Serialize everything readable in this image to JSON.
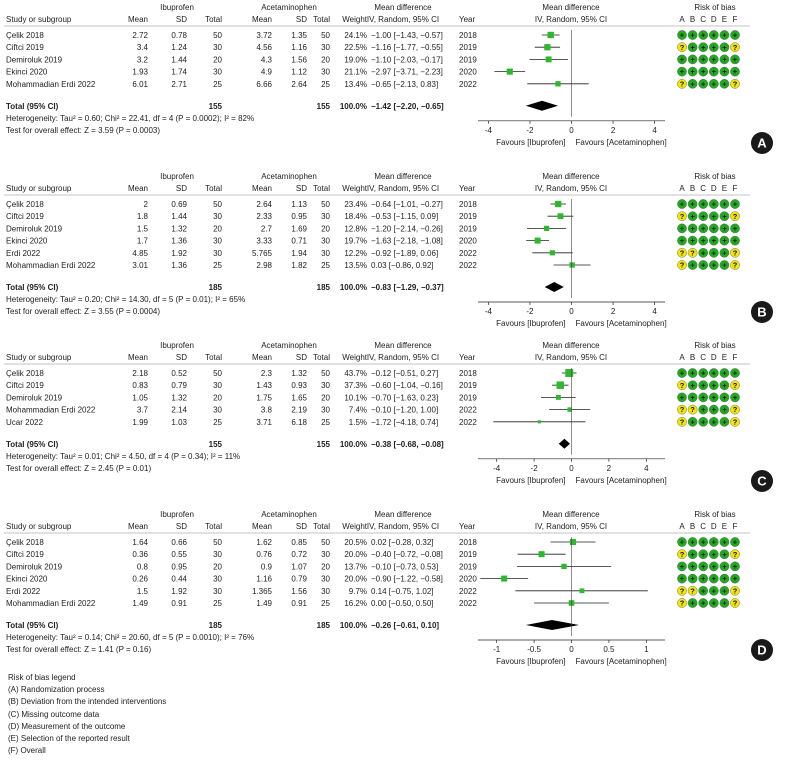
{
  "headers": {
    "study": "Study or subgroup",
    "group1": "Ibuprofen",
    "group2": "Acetaminophen",
    "mean": "Mean",
    "sd": "SD",
    "total": "Total",
    "weight": "Weight",
    "md_title": "Mean difference",
    "md_sub": "IV, Random, 95% CI",
    "year": "Year",
    "rob_title": "Risk of bias",
    "rob_letters": [
      "A",
      "B",
      "C",
      "D",
      "E",
      "F"
    ],
    "favours_left": "Favours [Ibuprofen]",
    "favours_right": "Favours [Acetaminophen]"
  },
  "colors": {
    "low": "#1faa1f",
    "unclear": "#f2e600",
    "point": "#2db82d",
    "diamond": "#000000"
  },
  "chart_data": [
    {
      "type": "forest",
      "label": "A",
      "axis": {
        "min": -4.5,
        "max": 4.5,
        "ticks": [
          "-4",
          "-2",
          "0",
          "2",
          "4"
        ]
      },
      "studies": [
        {
          "name": "Çelik 2018",
          "m1": "2.72",
          "sd1": "0.78",
          "n1": "50",
          "m2": "3.72",
          "sd2": "1.35",
          "n2": "50",
          "weight": "24.1%",
          "ci_text": "−1.00 [−1.43, −0.57]",
          "year": "2018",
          "md": -1.0,
          "lo": -1.43,
          "hi": -0.57,
          "w": 24.1,
          "rob": [
            "+",
            "+",
            "+",
            "+",
            "+",
            "+"
          ]
        },
        {
          "name": "Ciftci 2019",
          "m1": "3.4",
          "sd1": "1.24",
          "n1": "30",
          "m2": "4.56",
          "sd2": "1.16",
          "n2": "30",
          "weight": "22.5%",
          "ci_text": "−1.16 [−1.77, −0.55]",
          "year": "2019",
          "md": -1.16,
          "lo": -1.77,
          "hi": -0.55,
          "w": 22.5,
          "rob": [
            "?",
            "+",
            "+",
            "+",
            "+",
            "?"
          ]
        },
        {
          "name": "Demiroluk 2019",
          "m1": "3.2",
          "sd1": "1.44",
          "n1": "20",
          "m2": "4.3",
          "sd2": "1.56",
          "n2": "20",
          "weight": "19.0%",
          "ci_text": "−1.10 [−2.03, −0.17]",
          "year": "2019",
          "md": -1.1,
          "lo": -2.03,
          "hi": -0.17,
          "w": 19.0,
          "rob": [
            "+",
            "+",
            "+",
            "+",
            "+",
            "+"
          ]
        },
        {
          "name": "Ekinci 2020",
          "m1": "1.93",
          "sd1": "1.74",
          "n1": "30",
          "m2": "4.9",
          "sd2": "1.12",
          "n2": "30",
          "weight": "21.1%",
          "ci_text": "−2.97 [−3.71, −2.23]",
          "year": "2020",
          "md": -2.97,
          "lo": -3.71,
          "hi": -2.23,
          "w": 21.1,
          "rob": [
            "+",
            "+",
            "+",
            "+",
            "+",
            "+"
          ]
        },
        {
          "name": "Mohammadian Erdi 2022",
          "m1": "6.01",
          "sd1": "2.71",
          "n1": "25",
          "m2": "6.66",
          "sd2": "2.64",
          "n2": "25",
          "weight": "13.4%",
          "ci_text": "−0.65 [−2.13, 0.83]",
          "year": "2022",
          "md": -0.65,
          "lo": -2.13,
          "hi": 0.83,
          "w": 13.4,
          "rob": [
            "?",
            "+",
            "+",
            "+",
            "+",
            "?"
          ]
        }
      ],
      "total": {
        "label": "Total (95% CI)",
        "n1": "155",
        "n2": "155",
        "weight": "100.0%",
        "ci_text": "−1.42 [−2.20, −0.65]",
        "md": -1.42,
        "lo": -2.2,
        "hi": -0.65
      },
      "heterogeneity": "Heterogeneity: Tau² = 0.60; Chi² = 22.41, df = 4 (P = 0.0002); I² = 82%",
      "overall": "Test for overall effect: Z = 3.59 (P = 0.0003)"
    },
    {
      "type": "forest",
      "label": "B",
      "axis": {
        "min": -4.5,
        "max": 4.5,
        "ticks": [
          "-4",
          "-2",
          "0",
          "2",
          "4"
        ]
      },
      "studies": [
        {
          "name": "Çelik 2018",
          "m1": "2",
          "sd1": "0.69",
          "n1": "50",
          "m2": "2.64",
          "sd2": "1.13",
          "n2": "50",
          "weight": "23.4%",
          "ci_text": "−0.64 [−1.01, −0.27]",
          "year": "2018",
          "md": -0.64,
          "lo": -1.01,
          "hi": -0.27,
          "w": 23.4,
          "rob": [
            "+",
            "+",
            "+",
            "+",
            "+",
            "+"
          ]
        },
        {
          "name": "Ciftci 2019",
          "m1": "1.8",
          "sd1": "1.44",
          "n1": "30",
          "m2": "2.33",
          "sd2": "0.95",
          "n2": "30",
          "weight": "18.4%",
          "ci_text": "−0.53 [−1.15, 0.09]",
          "year": "2019",
          "md": -0.53,
          "lo": -1.15,
          "hi": 0.09,
          "w": 18.4,
          "rob": [
            "?",
            "+",
            "+",
            "+",
            "+",
            "?"
          ]
        },
        {
          "name": "Demiroluk 2019",
          "m1": "1.5",
          "sd1": "1.32",
          "n1": "20",
          "m2": "2.7",
          "sd2": "1.69",
          "n2": "20",
          "weight": "12.8%",
          "ci_text": "−1.20 [−2.14, −0.26]",
          "year": "2019",
          "md": -1.2,
          "lo": -2.14,
          "hi": -0.26,
          "w": 12.8,
          "rob": [
            "+",
            "+",
            "+",
            "+",
            "+",
            "+"
          ]
        },
        {
          "name": "Ekinci 2020",
          "m1": "1.7",
          "sd1": "1.36",
          "n1": "30",
          "m2": "3.33",
          "sd2": "0.71",
          "n2": "30",
          "weight": "19.7%",
          "ci_text": "−1.63 [−2.18, −1.08]",
          "year": "2020",
          "md": -1.63,
          "lo": -2.18,
          "hi": -1.08,
          "w": 19.7,
          "rob": [
            "+",
            "+",
            "+",
            "+",
            "+",
            "+"
          ]
        },
        {
          "name": "Erdi 2022",
          "m1": "4.85",
          "sd1": "1.92",
          "n1": "30",
          "m2": "5.765",
          "sd2": "1.94",
          "n2": "30",
          "weight": "12.2%",
          "ci_text": "−0.92 [−1.89, 0.06]",
          "year": "2022",
          "md": -0.92,
          "lo": -1.89,
          "hi": 0.06,
          "w": 12.2,
          "rob": [
            "?",
            "?",
            "+",
            "+",
            "+",
            "?"
          ]
        },
        {
          "name": "Mohammadian Erdi 2022",
          "m1": "3.01",
          "sd1": "1.36",
          "n1": "25",
          "m2": "2.98",
          "sd2": "1.82",
          "n2": "25",
          "weight": "13.5%",
          "ci_text": "0.03 [−0.86, 0.92]",
          "year": "2022",
          "md": 0.03,
          "lo": -0.86,
          "hi": 0.92,
          "w": 13.5,
          "rob": [
            "?",
            "+",
            "+",
            "+",
            "+",
            "?"
          ]
        }
      ],
      "total": {
        "label": "Total (95% CI)",
        "n1": "185",
        "n2": "185",
        "weight": "100.0%",
        "ci_text": "−0.83 [−1.29, −0.37]",
        "md": -0.83,
        "lo": -1.29,
        "hi": -0.37
      },
      "heterogeneity": "Heterogeneity: Tau² = 0.20; Chi² = 14.30, df = 5 (P = 0.01); I² = 65%",
      "overall": "Test for overall effect: Z = 3.55 (P = 0.0004)"
    },
    {
      "type": "forest",
      "label": "C",
      "axis": {
        "min": -5,
        "max": 5,
        "ticks": [
          "-4",
          "-2",
          "0",
          "2",
          "4"
        ]
      },
      "studies": [
        {
          "name": "Çelik 2018",
          "m1": "2.18",
          "sd1": "0.52",
          "n1": "50",
          "m2": "2.3",
          "sd2": "1.32",
          "n2": "50",
          "weight": "43.7%",
          "ci_text": "−0.12 [−0.51, 0.27]",
          "year": "2018",
          "md": -0.12,
          "lo": -0.51,
          "hi": 0.27,
          "w": 43.7,
          "rob": [
            "+",
            "+",
            "+",
            "+",
            "+",
            "+"
          ]
        },
        {
          "name": "Ciftci 2019",
          "m1": "0.83",
          "sd1": "0.79",
          "n1": "30",
          "m2": "1.43",
          "sd2": "0.93",
          "n2": "30",
          "weight": "37.3%",
          "ci_text": "−0.60 [−1.04, −0.16]",
          "year": "2019",
          "md": -0.6,
          "lo": -1.04,
          "hi": -0.16,
          "w": 37.3,
          "rob": [
            "?",
            "+",
            "+",
            "+",
            "+",
            "?"
          ]
        },
        {
          "name": "Demiroluk 2019",
          "m1": "1.05",
          "sd1": "1.32",
          "n1": "20",
          "m2": "1.75",
          "sd2": "1.65",
          "n2": "20",
          "weight": "10.1%",
          "ci_text": "−0.70 [−1.63, 0.23]",
          "year": "2019",
          "md": -0.7,
          "lo": -1.63,
          "hi": 0.23,
          "w": 10.1,
          "rob": [
            "+",
            "+",
            "+",
            "+",
            "+",
            "+"
          ]
        },
        {
          "name": "Mohammadian Erdi 2022",
          "m1": "3.7",
          "sd1": "2.14",
          "n1": "30",
          "m2": "3.8",
          "sd2": "2.19",
          "n2": "30",
          "weight": "7.4%",
          "ci_text": "−0.10 [−1.20, 1.00]",
          "year": "2022",
          "md": -0.1,
          "lo": -1.2,
          "hi": 1.0,
          "w": 7.4,
          "rob": [
            "?",
            "?",
            "+",
            "+",
            "+",
            "?"
          ]
        },
        {
          "name": "Ucar 2022",
          "m1": "1.99",
          "sd1": "1.03",
          "n1": "25",
          "m2": "3.71",
          "sd2": "6.18",
          "n2": "25",
          "weight": "1.5%",
          "ci_text": "−1.72 [−4.18, 0.74]",
          "year": "2022",
          "md": -1.72,
          "lo": -4.18,
          "hi": 0.74,
          "w": 1.5,
          "rob": [
            "?",
            "+",
            "+",
            "+",
            "+",
            "?"
          ]
        }
      ],
      "total": {
        "label": "Total (95% CI)",
        "n1": "155",
        "n2": "155",
        "weight": "100.0%",
        "ci_text": "−0.38 [−0.68, −0.08]",
        "md": -0.38,
        "lo": -0.68,
        "hi": -0.08
      },
      "heterogeneity": "Heterogeneity: Tau² = 0.01; Chi² = 4.50, df = 4 (P = 0.34); I² = 11%",
      "overall": "Test for overall effect: Z = 2.45 (P = 0.01)"
    },
    {
      "type": "forest",
      "label": "D",
      "axis": {
        "min": -1.25,
        "max": 1.25,
        "ticks": [
          "-1",
          "-0.5",
          "0",
          "0.5",
          "1"
        ]
      },
      "studies": [
        {
          "name": "Çelik 2018",
          "m1": "1.64",
          "sd1": "0.66",
          "n1": "50",
          "m2": "1.62",
          "sd2": "0.85",
          "n2": "50",
          "weight": "20.5%",
          "ci_text": "0.02 [−0.28, 0.32]",
          "year": "2018",
          "md": 0.02,
          "lo": -0.28,
          "hi": 0.32,
          "w": 20.5,
          "rob": [
            "+",
            "+",
            "+",
            "+",
            "+",
            "+"
          ]
        },
        {
          "name": "Ciftci 2019",
          "m1": "0.36",
          "sd1": "0.55",
          "n1": "30",
          "m2": "0.76",
          "sd2": "0.72",
          "n2": "30",
          "weight": "20.0%",
          "ci_text": "−0.40 [−0.72, −0.08]",
          "year": "2019",
          "md": -0.4,
          "lo": -0.72,
          "hi": -0.08,
          "w": 20.0,
          "rob": [
            "?",
            "+",
            "+",
            "+",
            "+",
            "?"
          ]
        },
        {
          "name": "Demiroluk 2019",
          "m1": "0.8",
          "sd1": "0.95",
          "n1": "20",
          "m2": "0.9",
          "sd2": "1.07",
          "n2": "20",
          "weight": "13.7%",
          "ci_text": "−0.10 [−0.73, 0.53]",
          "year": "2019",
          "md": -0.1,
          "lo": -0.73,
          "hi": 0.53,
          "w": 13.7,
          "rob": [
            "+",
            "+",
            "+",
            "+",
            "+",
            "+"
          ]
        },
        {
          "name": "Ekinci 2020",
          "m1": "0.26",
          "sd1": "0.44",
          "n1": "30",
          "m2": "1.16",
          "sd2": "0.79",
          "n2": "30",
          "weight": "20.0%",
          "ci_text": "−0.90 [−1.22, −0.58]",
          "year": "2020",
          "md": -0.9,
          "lo": -1.22,
          "hi": -0.58,
          "w": 20.0,
          "rob": [
            "+",
            "+",
            "+",
            "+",
            "+",
            "+"
          ]
        },
        {
          "name": "Erdi 2022",
          "m1": "1.5",
          "sd1": "1.92",
          "n1": "30",
          "m2": "1.365",
          "sd2": "1.56",
          "n2": "30",
          "weight": "9.7%",
          "ci_text": "0.14 [−0.75, 1.02]",
          "year": "2022",
          "md": 0.14,
          "lo": -0.75,
          "hi": 1.02,
          "w": 9.7,
          "rob": [
            "?",
            "?",
            "+",
            "+",
            "+",
            "?"
          ]
        },
        {
          "name": "Mohammadian Erdi 2022",
          "m1": "1.49",
          "sd1": "0.91",
          "n1": "25",
          "m2": "1.49",
          "sd2": "0.91",
          "n2": "25",
          "weight": "16.2%",
          "ci_text": "0.00 [−0.50, 0.50]",
          "year": "2022",
          "md": 0.0,
          "lo": -0.5,
          "hi": 0.5,
          "w": 16.2,
          "rob": [
            "?",
            "+",
            "+",
            "+",
            "+",
            "?"
          ]
        }
      ],
      "total": {
        "label": "Total (95% CI)",
        "n1": "185",
        "n2": "185",
        "weight": "100.0%",
        "ci_text": "−0.26 [−0.61, 0.10]",
        "md": -0.26,
        "lo": -0.61,
        "hi": 0.1
      },
      "heterogeneity": "Heterogeneity: Tau² = 0.14; Chi² = 20.60, df = 5 (P = 0.0010); I² = 76%",
      "overall": "Test for overall effect: Z = 1.41 (P = 0.16)"
    }
  ],
  "legend": {
    "title": "Risk of bias legend",
    "items": [
      "(A) Randomization process",
      "(B) Deviation from the intended interventions",
      "(C) Missing outcome data",
      "(D) Measurement of the outcome",
      "(E) Selection of the reported result",
      "(F) Overall"
    ]
  }
}
